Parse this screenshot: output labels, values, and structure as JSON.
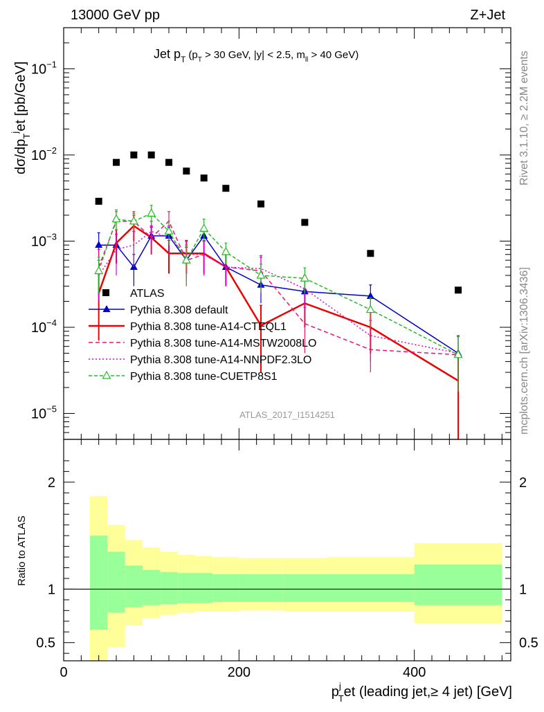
{
  "header": {
    "energy_label": "13000 GeV pp",
    "process_label": "Z+Jet"
  },
  "side_labels": {
    "rivet": "Rivet 3.1.10, ≥ 2.2M events",
    "source": "mcplots.cern.ch [arXiv:1306.3436]"
  },
  "analysis_id": "ATLAS_2017_I1514251",
  "chart_data": [
    {
      "type": "line",
      "title": {
        "main": "Jet p",
        "main_sub": "T",
        "cuts_open": "(p",
        "cuts_sub1": "T",
        "cuts_mid": " > 30 GeV, |y| < 2.5, m",
        "cuts_sub2": "ll",
        "cuts_end": " > 40 GeV)"
      },
      "ylabel": {
        "p1": "dσ/dp",
        "sub1": "T",
        "sup": "j",
        "p2": "et [pb/GeV]"
      },
      "yscale": "log",
      "ylim": [
        5e-06,
        0.3
      ],
      "xlim": [
        0,
        510
      ],
      "yticks": [
        {
          "value": 1e-05,
          "base": "10",
          "exp": "−5"
        },
        {
          "value": 0.0001,
          "base": "10",
          "exp": "−4"
        },
        {
          "value": 0.001,
          "base": "10",
          "exp": "−3"
        },
        {
          "value": 0.01,
          "base": "10",
          "exp": "−2"
        },
        {
          "value": 0.1,
          "base": "10",
          "exp": "−1"
        }
      ],
      "data": {
        "name": "ATLAS",
        "x": [
          40,
          60,
          80,
          100,
          120,
          140,
          160,
          185,
          225,
          275,
          350,
          450
        ],
        "y": [
          0.0029,
          0.0082,
          0.01,
          0.01,
          0.0082,
          0.0065,
          0.0054,
          0.0041,
          0.0027,
          0.00165,
          0.00072,
          0.00027
        ]
      },
      "series": [
        {
          "name": "Pythia 8.308 default",
          "color": "#0000cc",
          "dash": "none",
          "marker": "triangle-filled",
          "x": [
            40,
            60,
            80,
            100,
            120,
            140,
            160,
            185,
            225,
            275,
            350,
            450
          ],
          "y": [
            0.0009,
            0.0009,
            0.0005,
            0.00115,
            0.00115,
            0.0006,
            0.00115,
            0.0005,
            0.00031,
            0.00026,
            0.00023,
            5e-05
          ],
          "err": [
            0.00035,
            0.0003,
            0.0002,
            0.0003,
            0.0003,
            0.00025,
            0.0003,
            0.0002,
            0.00012,
            0.0001,
            8e-05,
            3e-05
          ]
        },
        {
          "name": "Pythia 8.308 tune-A14-CTEQL1",
          "color": "#ee0000",
          "dash": "none",
          "marker": "none",
          "x": [
            40,
            60,
            80,
            100,
            120,
            140,
            160,
            185,
            225,
            275,
            350,
            450
          ],
          "y": [
            0.00025,
            0.00095,
            0.0015,
            0.0011,
            0.00072,
            0.00072,
            0.00072,
            0.0005,
            0.000105,
            0.00019,
            0.0001,
            2.4e-05
          ],
          "err": [
            0.00018,
            0.0004,
            0.0005,
            0.0004,
            0.0003,
            0.0003,
            0.0003,
            0.0002,
            7.5e-05,
            9e-05,
            5e-05,
            2.2e-05
          ]
        },
        {
          "name": "Pythia 8.308 tune-A14-MSTW2008LO",
          "color": "#ee1177",
          "dash": "6,4",
          "marker": "none",
          "x": [
            40,
            60,
            80,
            100,
            120,
            140,
            160,
            185,
            225,
            275,
            350,
            450
          ],
          "y": [
            0.0005,
            0.0017,
            0.0017,
            0.0011,
            0.0017,
            0.0006,
            0.0007,
            0.0005,
            0.00045,
            0.00011,
            5.5e-05,
            4.8e-05
          ],
          "err": [
            0.0003,
            0.0005,
            0.0005,
            0.0004,
            0.0005,
            0.0003,
            0.0003,
            0.0002,
            0.0002,
            6e-05,
            2.5e-05,
            3e-05
          ]
        },
        {
          "name": "Pythia 8.308 tune-A14-NNPDF2.3LO",
          "color": "#dd00cc",
          "dash": "2,3",
          "marker": "none",
          "x": [
            40,
            60,
            80,
            100,
            120,
            140,
            160,
            185,
            225,
            275,
            350,
            450
          ],
          "y": [
            0.0004,
            0.0008,
            0.0009,
            0.0013,
            0.0011,
            0.0007,
            0.0007,
            0.0005,
            0.00048,
            0.00028,
            8e-05,
            5e-05
          ],
          "err": [
            0.0002,
            0.0004,
            0.0004,
            0.0004,
            0.0004,
            0.0003,
            0.0003,
            0.0002,
            0.0002,
            0.00012,
            4e-05,
            3e-05
          ]
        },
        {
          "name": "Pythia 8.308 tune-CUETP8S1",
          "color": "#22bb22",
          "dash": "5,3",
          "marker": "triangle-open",
          "x": [
            40,
            60,
            80,
            100,
            120,
            140,
            160,
            185,
            225,
            275,
            350,
            450
          ],
          "y": [
            0.00045,
            0.0018,
            0.0017,
            0.0021,
            0.0013,
            0.0006,
            0.0014,
            0.00075,
            0.0004,
            0.00037,
            0.00016,
            4.8e-05
          ],
          "err": [
            0.0002,
            0.0005,
            0.0004,
            0.0005,
            0.0004,
            0.0003,
            0.0004,
            0.0002,
            0.00014,
            0.00012,
            6e-05,
            3e-05
          ]
        }
      ]
    },
    {
      "type": "area",
      "ylabel": "Ratio to ATLAS",
      "xlabel": {
        "p1": "p",
        "sup": "j",
        "sub": "T",
        "p2": "et (leading jet,≥ 4 jet) [GeV]"
      },
      "xlim": [
        0,
        510
      ],
      "ylim": [
        0.33,
        2.4
      ],
      "yticks": [
        0.5,
        1,
        2
      ],
      "ytick_labels": [
        "0.5",
        "1",
        "2"
      ],
      "xticks": [
        0,
        200,
        400
      ],
      "xtick_labels": [
        "0",
        "200",
        "400"
      ],
      "bins": [
        {
          "lo": 30,
          "hi": 50,
          "inner": [
            0.62,
            1.5
          ],
          "outer": [
            0.33,
            1.87
          ]
        },
        {
          "lo": 50,
          "hi": 70,
          "inner": [
            0.78,
            1.35
          ],
          "outer": [
            0.46,
            1.6
          ]
        },
        {
          "lo": 70,
          "hi": 90,
          "inner": [
            0.83,
            1.22
          ],
          "outer": [
            0.66,
            1.46
          ]
        },
        {
          "lo": 90,
          "hi": 110,
          "inner": [
            0.85,
            1.18
          ],
          "outer": [
            0.73,
            1.39
          ]
        },
        {
          "lo": 110,
          "hi": 130,
          "inner": [
            0.86,
            1.16
          ],
          "outer": [
            0.76,
            1.35
          ]
        },
        {
          "lo": 130,
          "hi": 150,
          "inner": [
            0.87,
            1.15
          ],
          "outer": [
            0.78,
            1.32
          ]
        },
        {
          "lo": 150,
          "hi": 170,
          "inner": [
            0.87,
            1.15
          ],
          "outer": [
            0.79,
            1.31
          ]
        },
        {
          "lo": 170,
          "hi": 200,
          "inner": [
            0.88,
            1.14
          ],
          "outer": [
            0.79,
            1.3
          ]
        },
        {
          "lo": 200,
          "hi": 250,
          "inner": [
            0.88,
            1.14
          ],
          "outer": [
            0.8,
            1.29
          ]
        },
        {
          "lo": 250,
          "hi": 300,
          "inner": [
            0.88,
            1.14
          ],
          "outer": [
            0.79,
            1.29
          ]
        },
        {
          "lo": 300,
          "hi": 400,
          "inner": [
            0.88,
            1.14
          ],
          "outer": [
            0.79,
            1.3
          ]
        },
        {
          "lo": 400,
          "hi": 500,
          "inner": [
            0.85,
            1.23
          ],
          "outer": [
            0.68,
            1.43
          ]
        }
      ]
    }
  ]
}
